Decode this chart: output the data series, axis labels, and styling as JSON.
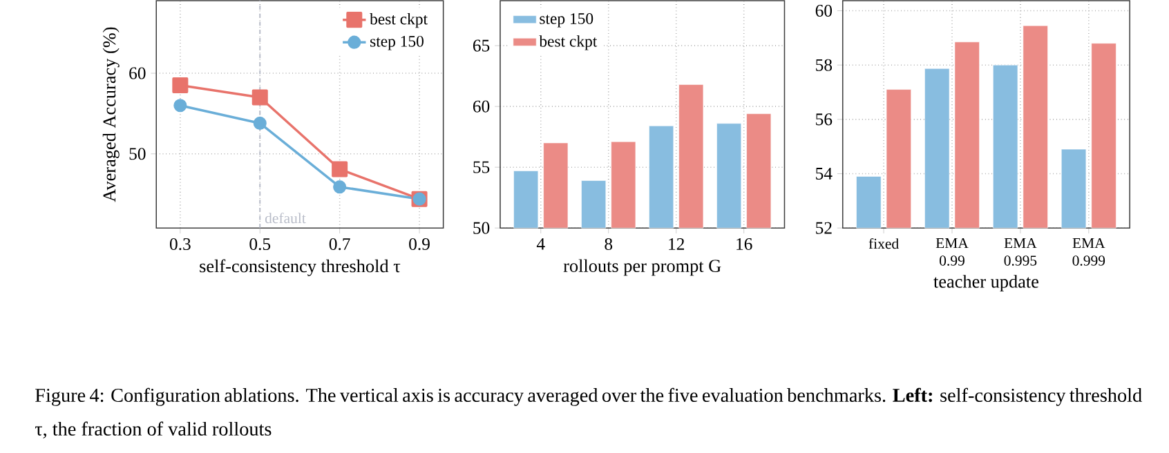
{
  "chart_data": [
    {
      "type": "line",
      "xlabel": "self-consistency threshold τ",
      "ylabel": "Averaged Accuracy (%)",
      "x": [
        0.3,
        0.5,
        0.7,
        0.9
      ],
      "xlim": [
        0.24,
        0.96
      ],
      "xticks": [
        0.3,
        0.5,
        0.7,
        0.9
      ],
      "ylim": [
        40.8,
        69
      ],
      "yticks": [
        50,
        60
      ],
      "grid": true,
      "legend": "top right",
      "series": [
        {
          "name": "best ckpt",
          "color": "#e8736b",
          "marker": "square",
          "values": [
            58.5,
            57.0,
            48.1,
            44.4
          ]
        },
        {
          "name": "step 150",
          "color": "#6aaed8",
          "marker": "circle",
          "values": [
            56.0,
            53.8,
            45.9,
            44.4
          ]
        }
      ],
      "ref_lines": [
        {
          "axis": "x",
          "value": 0.5,
          "label": "default",
          "color": "#b8bcc8",
          "line_style": "dashed"
        }
      ],
      "annotations": [
        "Figure 4: Configuration ablations. The vertical axis is accuracy averaged over the five evaluation benchmarks. **Left:** self-consistency threshold τ, the fraction of valid rollouts"
      ]
    },
    {
      "type": "bar",
      "xlabel": "rollouts per prompt G",
      "categories": [
        "4",
        "8",
        "12",
        "16"
      ],
      "ylim": [
        50,
        68.7
      ],
      "yticks": [
        50,
        55,
        60,
        65
      ],
      "grid": true,
      "legend": "top left",
      "series": [
        {
          "name": "step 150",
          "color": "#88bde0",
          "values": [
            54.7,
            53.9,
            58.4,
            58.6
          ]
        },
        {
          "name": "best ckpt",
          "color": "#eb8b86",
          "values": [
            57.0,
            57.1,
            61.8,
            59.4
          ]
        }
      ]
    },
    {
      "type": "bar",
      "xlabel": "teacher update",
      "categories": [
        "fixed",
        "EMA 0.99",
        "EMA 0.995",
        "EMA 0.999"
      ],
      "ylim": [
        52,
        60.37
      ],
      "yticks": [
        52,
        54,
        56,
        58,
        60
      ],
      "grid": true,
      "series": [
        {
          "color": "#88bde0",
          "values": [
            53.9,
            57.87,
            58.0,
            54.9
          ]
        },
        {
          "color": "#eb8b86",
          "values": [
            57.1,
            58.85,
            59.45,
            58.8
          ]
        }
      ]
    }
  ]
}
